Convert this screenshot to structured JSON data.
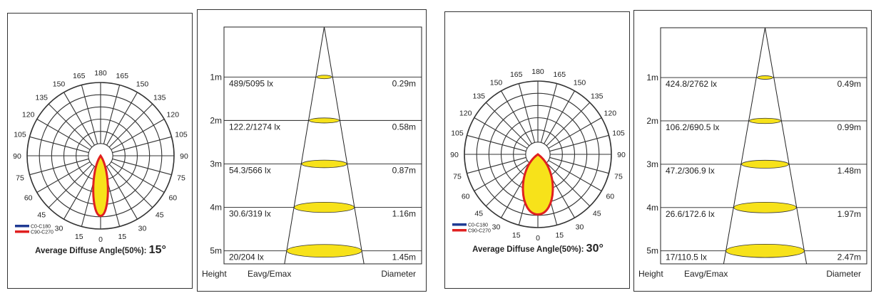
{
  "chart_data": [
    {
      "type": "polar",
      "angle_labels_left": [
        "165",
        "150",
        "135",
        "120",
        "105",
        "90",
        "75",
        "60",
        "45",
        "30",
        "15"
      ],
      "angle_labels_right": [
        "165",
        "150",
        "135",
        "120",
        "105",
        "90",
        "75",
        "60",
        "45",
        "30",
        "15"
      ],
      "angle_label_top": "180",
      "angle_label_bottom": "0",
      "legend": [
        {
          "name": "C0-C180",
          "color": "#1f3a93"
        },
        {
          "name": "C90-C270",
          "color": "#e02020"
        }
      ],
      "beam_half_angle_deg": 7.5,
      "caption_prefix": "Average Diffuse Angle(50%):",
      "caption_value": "15°"
    },
    {
      "type": "table",
      "heights": [
        "1m",
        "2m",
        "3m",
        "4m",
        "5m"
      ],
      "lux": [
        "489/5095 lx",
        "122.2/1274 lx",
        "54.3/566 lx",
        "30.6/319 lx",
        "20/204 lx"
      ],
      "diameters": [
        "0.29m",
        "0.58m",
        "0.87m",
        "1.16m",
        "1.45m"
      ],
      "diameter_values": [
        0.29,
        0.58,
        0.87,
        1.16,
        1.45
      ],
      "xlabel_height": "Height",
      "xlabel_eavg": "Eavg/Emax",
      "xlabel_diameter": "Diameter",
      "fill_color": "#f7e21a"
    },
    {
      "type": "polar",
      "angle_labels_left": [
        "165",
        "150",
        "135",
        "120",
        "105",
        "90",
        "75",
        "60",
        "45",
        "30",
        "15"
      ],
      "angle_labels_right": [
        "165",
        "150",
        "135",
        "120",
        "105",
        "90",
        "75",
        "60",
        "45",
        "30",
        "15"
      ],
      "angle_label_top": "180",
      "angle_label_bottom": "0",
      "legend": [
        {
          "name": "C0-C180",
          "color": "#1f3a93"
        },
        {
          "name": "C90-C270",
          "color": "#e02020"
        }
      ],
      "beam_half_angle_deg": 15,
      "caption_prefix": "Average Diffuse Angle(50%):",
      "caption_value": "30°"
    },
    {
      "type": "table",
      "heights": [
        "1m",
        "2m",
        "3m",
        "4m",
        "5m"
      ],
      "lux": [
        "424.8/2762 lx",
        "106.2/690.5 lx",
        "47.2/306.9 lx",
        "26.6/172.6 lx",
        "17/110.5 lx"
      ],
      "diameters": [
        "0.49m",
        "0.99m",
        "1.48m",
        "1.97m",
        "2.47m"
      ],
      "diameter_values": [
        0.49,
        0.99,
        1.48,
        1.97,
        2.47
      ],
      "xlabel_height": "Height",
      "xlabel_eavg": "Eavg/Emax",
      "xlabel_diameter": "Diameter",
      "fill_color": "#f7e21a"
    }
  ]
}
